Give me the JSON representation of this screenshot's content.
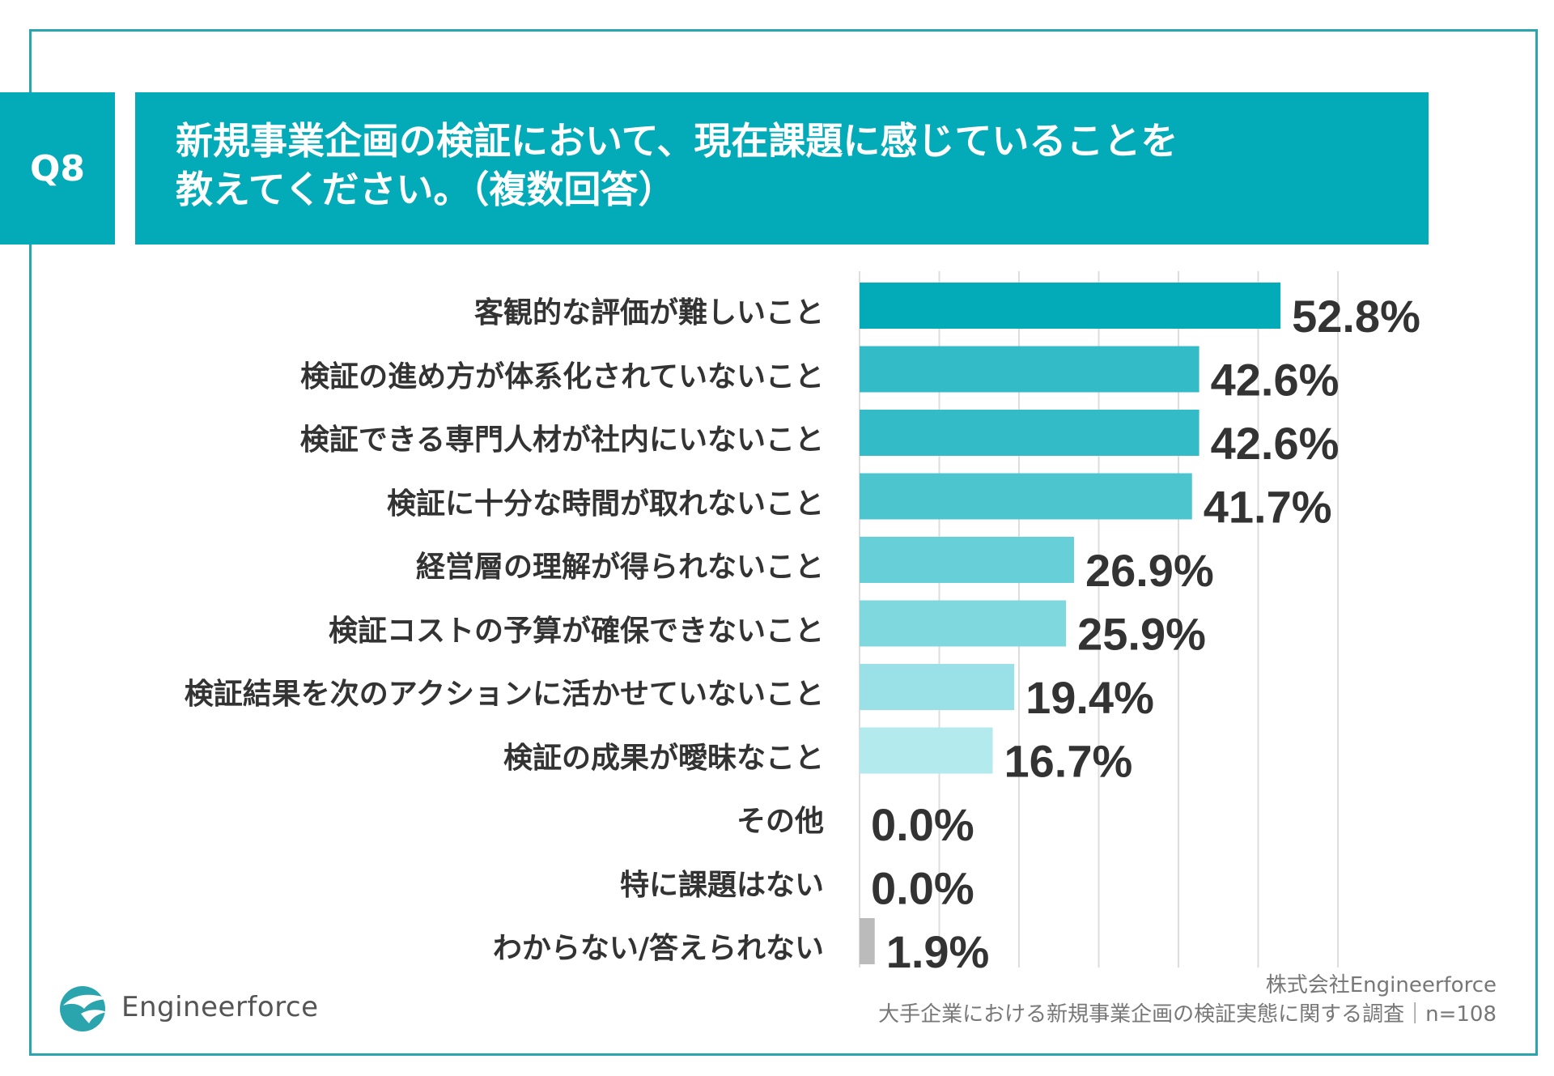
{
  "header": {
    "question_no": "Q8",
    "title_line1": "新規事業企画の検証において、現在課題に感じていることを",
    "title_line2": "教えてください。（複数回答）"
  },
  "chart_data": {
    "type": "bar",
    "orientation": "horizontal",
    "title": "新規事業企画の検証において、現在課題に感じていることを教えてください。（複数回答）",
    "categories": [
      "客観的な評価が難しいこと",
      "検証の進め方が体系化されていないこと",
      "検証できる専門人材が社内にいないこと",
      "検証に十分な時間が取れないこと",
      "経営層の理解が得られないこと",
      "検証コストの予算が確保できないこと",
      "検証結果を次のアクションに活かせていないこと",
      "検証の成果が曖昧なこと",
      "その他",
      "特に課題はない",
      "わからない/答えられない"
    ],
    "values": [
      52.8,
      42.6,
      42.6,
      41.7,
      26.9,
      25.9,
      19.4,
      16.7,
      0.0,
      0.0,
      1.9
    ],
    "value_labels": [
      "52.8%",
      "42.6%",
      "42.6%",
      "41.7%",
      "26.9%",
      "25.9%",
      "19.4%",
      "16.7%",
      "0.0%",
      "0.0%",
      "1.9%"
    ],
    "bar_colors": [
      "#03aab7",
      "#33bcc7",
      "#33bcc7",
      "#4cc5cf",
      "#66cfd7",
      "#80d8df",
      "#99e1e6",
      "#b3eaee",
      "#b3eaee",
      "#b3eaee",
      "#bbbbbb"
    ],
    "xlim": [
      0,
      60
    ],
    "grid_step": 10,
    "grid": true,
    "unit": "%"
  },
  "source": {
    "company": "株式会社Engineerforce",
    "survey": "大手企業における新規事業企画の検証実態に関する調査｜n=108"
  },
  "logo": {
    "text": "Engineerforce",
    "icon": "bird-icon"
  },
  "colors": {
    "accent": "#03aab7",
    "frame": "#2aa5ad"
  }
}
